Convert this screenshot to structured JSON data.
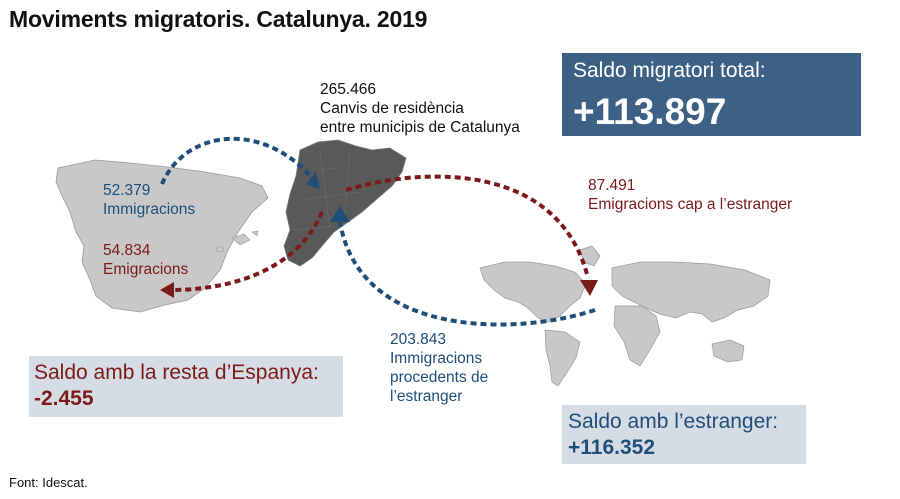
{
  "title": "Moviments migratoris. Catalunya. 2019",
  "intra_catalonia": {
    "value": "265.466",
    "label_line1": "Canvis de residència",
    "label_line2": "entre municipis de Catalunya"
  },
  "total": {
    "label": "Saldo migratori total:",
    "value": "+113.897"
  },
  "spain_immigrations": {
    "value": "52.379",
    "label": "Immigracions"
  },
  "spain_emigrations": {
    "value": "54.834",
    "label": "Emigracions"
  },
  "abroad_emigrations": {
    "value": "87.491",
    "label": "Emigracions cap a l’estranger"
  },
  "abroad_immigrations": {
    "value": "203.843",
    "label_line1": "Immigracions",
    "label_line2": "procedents de",
    "label_line3": "l’estranger"
  },
  "balance_spain": {
    "label": "Saldo amb la resta d’Espanya:",
    "value": "-2.455"
  },
  "balance_abroad": {
    "label": "Saldo amb l’estranger:",
    "value": "+116.352"
  },
  "source": "Font: Idescat.",
  "colors": {
    "blue_arrow": "#1f4e79",
    "red_arrow": "#7b1a1a",
    "total_box": "#3d6185",
    "balance_box": "#d6dce4",
    "catalonia_map": "#595959",
    "map_fill": "#c8c8c8"
  }
}
